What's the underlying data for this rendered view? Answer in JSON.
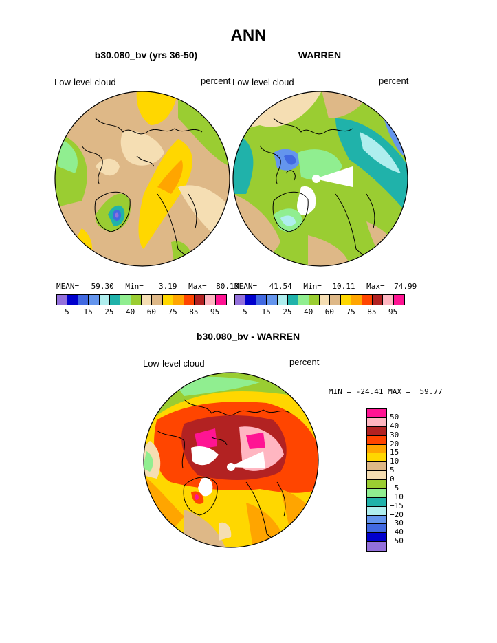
{
  "page": {
    "title": "ANN",
    "left_panel_title": "b30.080_bv (yrs 36-50)",
    "right_panel_title": "WARREN",
    "diff_title": "b30.080_bv - WARREN"
  },
  "chart_data": [
    {
      "type": "heatmap",
      "projection": "north-polar-stereographic",
      "title": "b30.080_bv (yrs 36-50)",
      "left_label": "Low-level cloud",
      "right_label": "percent",
      "stats": {
        "mean_label": "MEAN=",
        "mean": "59.30",
        "min_label": "Min=",
        "min": "3.19",
        "max_label": "Max=",
        "max": "80.13"
      },
      "colorbar": {
        "tick_labels": [
          "5",
          "15",
          "25",
          "40",
          "60",
          "75",
          "85",
          "95"
        ],
        "colors": [
          "#9370db",
          "#0000cd",
          "#4169e1",
          "#6495ed",
          "#afeeee",
          "#20b2aa",
          "#90ee90",
          "#9acd32",
          "#f5deb3",
          "#deb887",
          "#ffd700",
          "#ffa500",
          "#ff4500",
          "#b22222",
          "#ffb6c1",
          "#ff1493"
        ]
      },
      "dominant_colors": [
        "#deb887",
        "#f5deb3",
        "#ffd700",
        "#ffa500",
        "#9acd32",
        "#90ee90"
      ]
    },
    {
      "type": "heatmap",
      "projection": "north-polar-stereographic",
      "title": "WARREN",
      "left_label": "Low-level cloud",
      "right_label": "percent",
      "stats": {
        "mean_label": "MEAN=",
        "mean": "41.54",
        "min_label": "Min=",
        "min": "10.11",
        "max_label": "Max=",
        "max": "74.99"
      },
      "colorbar": {
        "tick_labels": [
          "5",
          "15",
          "25",
          "40",
          "60",
          "75",
          "85",
          "95"
        ],
        "colors": [
          "#9370db",
          "#0000cd",
          "#4169e1",
          "#6495ed",
          "#afeeee",
          "#20b2aa",
          "#90ee90",
          "#9acd32",
          "#f5deb3",
          "#deb887",
          "#ffd700",
          "#ffa500",
          "#ff4500",
          "#b22222",
          "#ffb6c1",
          "#ff1493"
        ]
      },
      "dominant_colors": [
        "#9acd32",
        "#90ee90",
        "#20b2aa",
        "#deb887",
        "#f5deb3",
        "#6495ed"
      ]
    },
    {
      "type": "heatmap",
      "projection": "north-polar-stereographic",
      "title": "b30.080_bv - WARREN",
      "left_label": "Low-level cloud",
      "right_label": "percent",
      "stats": {
        "text": "MIN = -24.41 MAX =  59.77"
      },
      "colorbar": {
        "orientation": "vertical",
        "tick_labels": [
          "50",
          "40",
          "30",
          "20",
          "15",
          "10",
          "5",
          "0",
          "−5",
          "−10",
          "−15",
          "−20",
          "−30",
          "−40",
          "−50"
        ],
        "colors": [
          "#ff1493",
          "#ffb6c1",
          "#b22222",
          "#ff4500",
          "#ffa500",
          "#ffd700",
          "#deb887",
          "#f5deb3",
          "#9acd32",
          "#90ee90",
          "#20b2aa",
          "#afeeee",
          "#6495ed",
          "#4169e1",
          "#0000cd",
          "#9370db"
        ]
      },
      "dominant_colors": [
        "#b22222",
        "#ff4500",
        "#ffa500",
        "#ffd700",
        "#ffb6c1",
        "#ff1493",
        "#90ee90"
      ]
    }
  ]
}
